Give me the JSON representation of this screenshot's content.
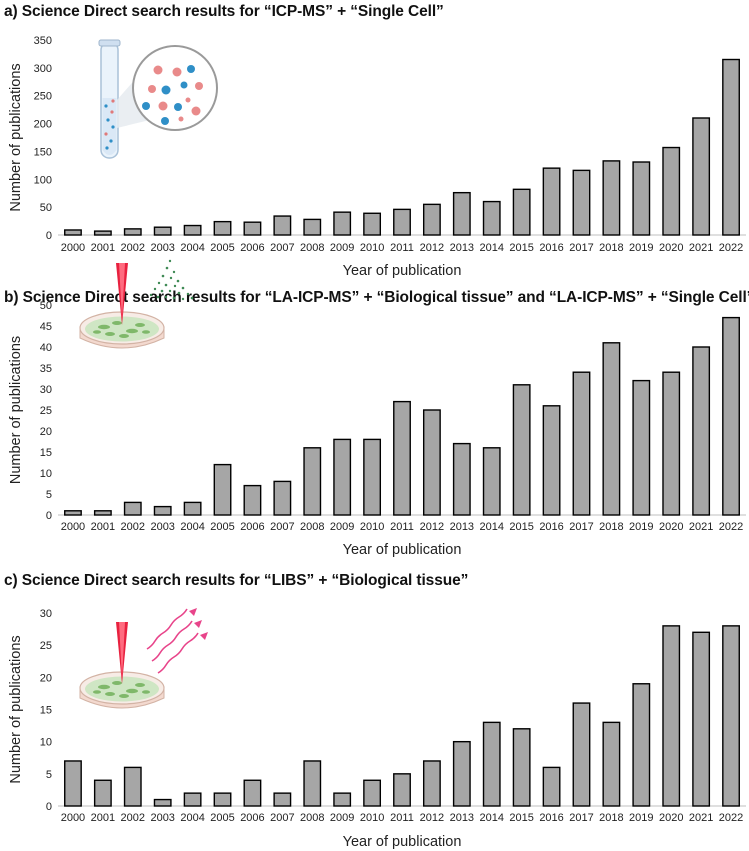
{
  "chart_data": [
    {
      "type": "bar",
      "title": "a) Science Direct search results for “ICP-MS” + “Single Cell”",
      "xlabel": "Year of publication",
      "ylabel": "Number of publications",
      "categories": [
        "2000",
        "2001",
        "2002",
        "2003",
        "2004",
        "2005",
        "2006",
        "2007",
        "2008",
        "2009",
        "2010",
        "2011",
        "2012",
        "2013",
        "2014",
        "2015",
        "2016",
        "2017",
        "2018",
        "2019",
        "2020",
        "2021",
        "2022"
      ],
      "values": [
        9,
        7,
        11,
        14,
        17,
        24,
        23,
        34,
        28,
        41,
        39,
        46,
        55,
        76,
        60,
        82,
        120,
        116,
        133,
        131,
        157,
        210,
        315
      ],
      "ylim": [
        0,
        350
      ],
      "yticks": [
        0,
        50,
        100,
        150,
        200,
        250,
        300,
        350
      ],
      "grid": false,
      "illustration": "test-tube-with-cells"
    },
    {
      "type": "bar",
      "title": "b) Science Direct search results for “LA-ICP-MS” + “Biological tissue” and “LA-ICP-MS” + “Single Cell”",
      "xlabel": "Year of publication",
      "ylabel": "Number of publications",
      "categories": [
        "2000",
        "2001",
        "2002",
        "2003",
        "2004",
        "2005",
        "2006",
        "2007",
        "2008",
        "2009",
        "2010",
        "2011",
        "2012",
        "2013",
        "2014",
        "2015",
        "2016",
        "2017",
        "2018",
        "2019",
        "2020",
        "2021",
        "2022"
      ],
      "values": [
        1,
        1,
        3,
        2,
        3,
        12,
        7,
        8,
        16,
        18,
        18,
        27,
        25,
        17,
        16,
        31,
        26,
        34,
        41,
        32,
        34,
        40,
        47
      ],
      "ylim": [
        0,
        50
      ],
      "yticks": [
        0,
        5,
        10,
        15,
        20,
        25,
        30,
        35,
        40,
        45,
        50
      ],
      "grid": false,
      "illustration": "laser-ablation-petri-dish"
    },
    {
      "type": "bar",
      "title": "c) Science Direct search results for “LIBS” + “Biological tissue”",
      "xlabel": "Year of publication",
      "ylabel": "Number of publications",
      "categories": [
        "2000",
        "2001",
        "2002",
        "2003",
        "2004",
        "2005",
        "2006",
        "2007",
        "2008",
        "2009",
        "2010",
        "2011",
        "2012",
        "2013",
        "2014",
        "2015",
        "2016",
        "2017",
        "2018",
        "2019",
        "2020",
        "2021",
        "2022"
      ],
      "values": [
        7,
        4,
        6,
        1,
        2,
        2,
        4,
        2,
        7,
        2,
        4,
        5,
        7,
        10,
        13,
        12,
        6,
        16,
        13,
        19,
        28,
        27,
        28
      ],
      "ylim": [
        0,
        30
      ],
      "yticks": [
        0,
        5,
        10,
        15,
        20,
        25,
        30
      ],
      "grid": false,
      "illustration": "laser-plasma-emission-petri-dish"
    }
  ]
}
